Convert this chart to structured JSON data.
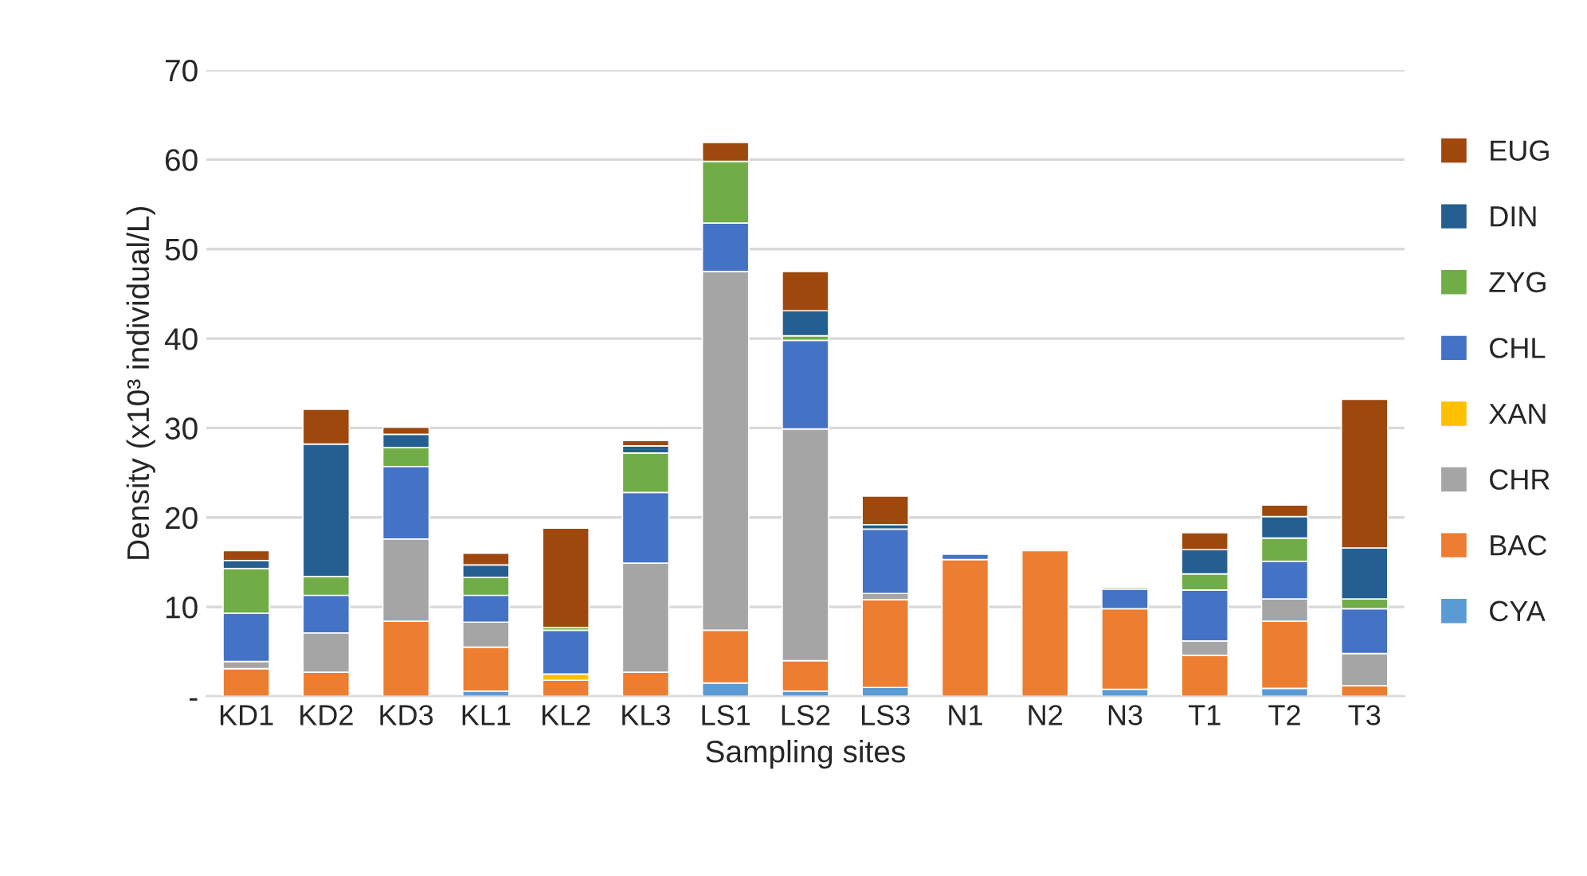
{
  "chart_data": {
    "type": "bar",
    "stacked": true,
    "xlabel": "Sampling sites",
    "ylabel": "Density (x10³ individual/L)",
    "categories": [
      "KD1",
      "KD2",
      "KD3",
      "KL1",
      "KL2",
      "KL3",
      "LS1",
      "LS2",
      "LS3",
      "N1",
      "N2",
      "N3",
      "T1",
      "T2",
      "T3"
    ],
    "series": [
      {
        "name": "CYA",
        "color": "#5b9bd5",
        "values": [
          0,
          0,
          null,
          0.6,
          0,
          0,
          1.5,
          0.6,
          1.0,
          null,
          0,
          0.8,
          0,
          0.9,
          0
        ]
      },
      {
        "name": "BAC",
        "color": "#ed7d31",
        "values": [
          3.1,
          2.7,
          8.4,
          4.9,
          1.8,
          2.7,
          5.9,
          3.4,
          9.8,
          15.3,
          16.3,
          9.0,
          4.6,
          7.5,
          1.2
        ]
      },
      {
        "name": "CHR",
        "color": "#a5a5a5",
        "values": [
          0.8,
          4.4,
          9.2,
          2.8,
          0,
          12.2,
          40.1,
          25.9,
          0.7,
          0,
          0,
          0,
          1.6,
          2.5,
          3.6
        ]
      },
      {
        "name": "XAN",
        "color": "#ffc000",
        "values": [
          0,
          0,
          0,
          0,
          0.7,
          0,
          0,
          0,
          0,
          0,
          0,
          0,
          0,
          0,
          0
        ]
      },
      {
        "name": "CHL",
        "color": "#4472c4",
        "values": [
          5.4,
          4.2,
          8.1,
          3.0,
          4.9,
          7.9,
          5.4,
          9.9,
          7.2,
          0.6,
          0,
          2.2,
          5.7,
          4.2,
          5.0
        ]
      },
      {
        "name": "ZYG",
        "color": "#70ad47",
        "values": [
          5.0,
          2.1,
          2.1,
          2.0,
          0.3,
          4.4,
          6.9,
          0.5,
          0,
          0,
          0,
          0.2,
          1.8,
          2.6,
          1.1
        ]
      },
      {
        "name": "DIN",
        "color": "#255e91",
        "values": [
          0.9,
          14.8,
          1.5,
          1.4,
          0,
          0.8,
          0,
          2.8,
          0.5,
          0,
          0,
          0,
          2.7,
          2.4,
          5.7
        ]
      },
      {
        "name": "EUG",
        "color": "#9e480e",
        "values": [
          1.1,
          3.9,
          0.8,
          1.3,
          11.1,
          0.6,
          2.1,
          4.4,
          3.2,
          0,
          0,
          0,
          1.9,
          1.3,
          16.6
        ]
      }
    ],
    "ylim": [
      0,
      70
    ],
    "yticks": [
      {
        "value": 0,
        "label": "-"
      },
      10,
      20,
      30,
      40,
      50,
      60,
      70
    ],
    "grid": "y",
    "legend": "right"
  }
}
